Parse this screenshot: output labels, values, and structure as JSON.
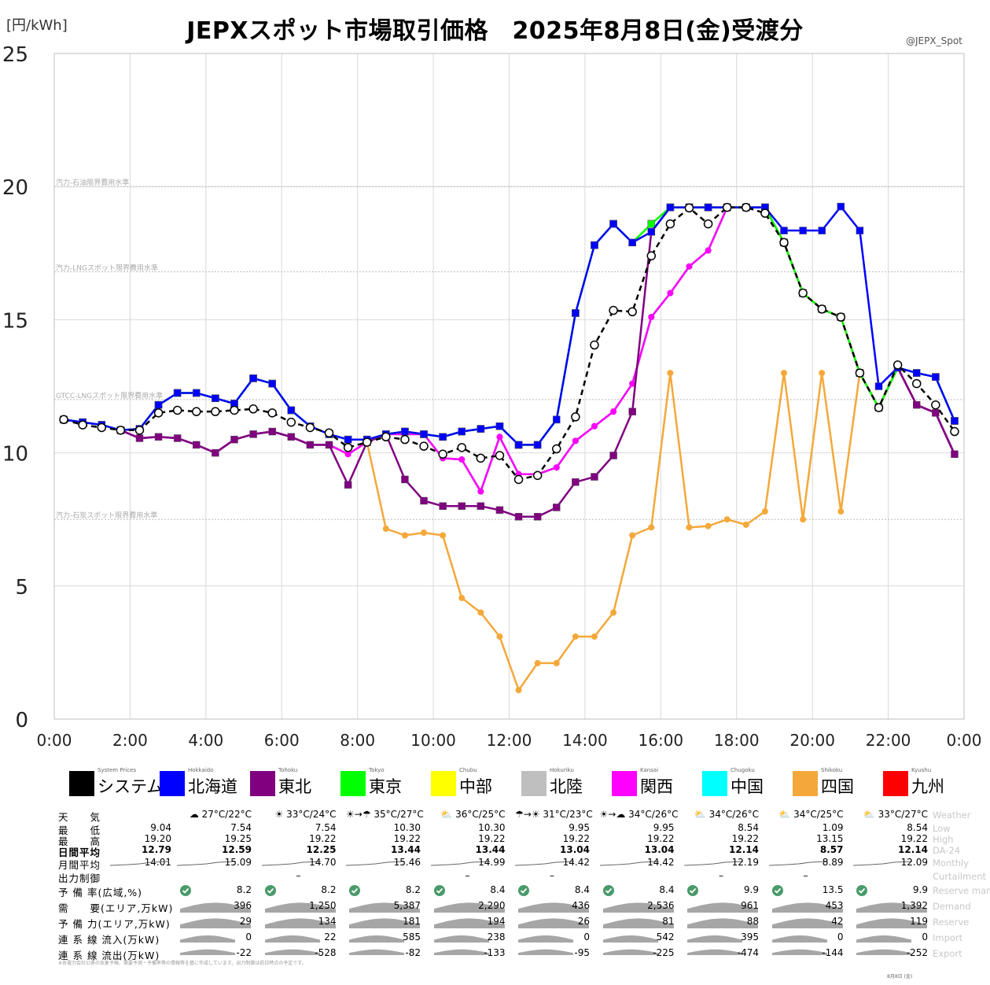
{
  "title": "JEPXスポット市場取引価格　2025年8月8日(金)受渡分",
  "unit_label": "[円/kWh]",
  "handle": "@JEPX_Spot",
  "chart_data": {
    "type": "line",
    "title": "JEPXスポット市場取引価格　2025年8月8日(金)受渡分",
    "ylabel": "[円/kWh]",
    "ylim": [
      0,
      25
    ],
    "xlim": [
      0,
      24
    ],
    "yticks": [
      "0",
      "5",
      "10",
      "15",
      "20",
      "25"
    ],
    "xticks": [
      "0:00",
      "2:00",
      "4:00",
      "6:00",
      "8:00",
      "10:00",
      "12:00",
      "14:00",
      "16:00",
      "18:00",
      "20:00",
      "22:00",
      "0:00"
    ],
    "reference_lines": [
      {
        "label": "汽力-石油限界費用水準",
        "value": 20.0
      },
      {
        "label": "汽力-LNGスポット限界費用水準",
        "value": 16.8
      },
      {
        "label": "GTCC-LNGスポット限界費用水準",
        "value": 12.0
      },
      {
        "label": "汽力-石炭スポット限界費用水準",
        "value": 7.5
      }
    ],
    "series": [
      {
        "name": "システム",
        "color": "#000000",
        "values": [
          11.25,
          11.05,
          10.95,
          10.85,
          10.85,
          11.5,
          11.6,
          11.55,
          11.55,
          11.6,
          11.65,
          11.5,
          11.15,
          10.95,
          10.75,
          10.2,
          10.4,
          10.6,
          10.5,
          10.25,
          9.95,
          10.2,
          9.8,
          9.9,
          9.0,
          9.15,
          10.15,
          11.35,
          14.05,
          15.35,
          15.3,
          17.4,
          18.6,
          19.2,
          18.6,
          19.22,
          19.22,
          19.0,
          17.9,
          16.0,
          15.4,
          15.1,
          13.0,
          11.7,
          13.3,
          12.6,
          11.8,
          10.8
        ]
      },
      {
        "name": "北海道",
        "color": "#0000ff",
        "values": [
          11.25,
          11.15,
          11.05,
          10.85,
          10.9,
          11.8,
          12.25,
          12.25,
          12.05,
          11.85,
          12.8,
          12.6,
          11.6,
          11.0,
          10.7,
          10.5,
          10.5,
          10.7,
          10.8,
          10.7,
          10.6,
          10.8,
          10.9,
          11.0,
          10.3,
          10.3,
          11.25,
          15.25,
          17.8,
          18.6,
          17.9,
          18.3,
          19.22,
          19.22,
          19.22,
          19.22,
          19.22,
          19.22,
          18.35,
          18.35,
          18.35,
          19.25,
          18.35,
          12.5,
          13.2,
          13.0,
          12.85,
          11.2
        ]
      },
      {
        "name": "東北",
        "color": "#800080",
        "values": [
          11.25,
          11.15,
          11.05,
          10.85,
          10.55,
          10.6,
          10.55,
          10.3,
          10.0,
          10.5,
          10.7,
          10.8,
          10.6,
          10.3,
          10.3,
          8.8,
          10.4,
          10.7,
          9.0,
          8.2,
          8.0,
          8.0,
          8.0,
          7.85,
          7.6,
          7.6,
          7.95,
          8.9,
          9.1,
          9.9,
          11.55,
          18.3,
          19.22,
          19.22,
          19.22,
          19.22,
          19.22,
          19.22,
          17.9,
          16.0,
          15.4,
          15.1,
          13.0,
          11.7,
          13.2,
          11.8,
          11.5,
          9.95
        ]
      },
      {
        "name": "東京",
        "color": "#00ff00",
        "values": [
          11.25,
          11.15,
          11.05,
          10.85,
          10.9,
          11.8,
          12.25,
          12.25,
          12.05,
          11.85,
          12.8,
          12.6,
          11.6,
          11.0,
          10.7,
          10.5,
          10.5,
          10.7,
          10.8,
          10.7,
          10.6,
          10.8,
          10.9,
          11.0,
          10.3,
          10.3,
          11.25,
          15.25,
          17.8,
          18.6,
          17.9,
          18.6,
          19.22,
          19.22,
          19.22,
          19.22,
          19.22,
          19.22,
          17.9,
          16.0,
          15.4,
          15.1,
          13.0,
          11.7,
          13.2,
          13.0,
          12.85,
          11.2
        ]
      },
      {
        "name": "中部",
        "color": "#ffff00",
        "values": [
          11.25,
          11.15,
          11.05,
          10.85,
          10.9,
          11.8,
          12.25,
          12.25,
          12.05,
          11.85,
          12.8,
          12.6,
          11.6,
          11.0,
          10.7,
          10.5,
          10.5,
          10.7,
          10.8,
          10.7,
          10.6,
          10.8,
          10.9,
          11.0,
          10.3,
          10.3,
          11.25,
          15.25,
          17.8,
          18.6,
          17.9,
          18.6,
          19.22,
          19.22,
          19.22,
          19.22,
          19.22,
          19.22,
          17.9,
          16.0,
          15.4,
          15.1,
          13.0,
          11.7,
          13.2,
          13.0,
          12.85,
          11.2
        ]
      },
      {
        "name": "北陸",
        "color": "#bfbfbf",
        "values": [
          11.25,
          11.15,
          11.05,
          10.85,
          10.9,
          11.8,
          12.25,
          12.25,
          12.05,
          11.85,
          12.8,
          12.6,
          11.6,
          11.0,
          10.7,
          10.5,
          10.5,
          10.7,
          10.8,
          10.7,
          10.6,
          10.8,
          10.9,
          11.0,
          10.3,
          10.3,
          11.25,
          15.25,
          17.8,
          18.6,
          17.9,
          18.6,
          19.22,
          19.22,
          19.22,
          19.22,
          19.22,
          19.22,
          17.9,
          16.0,
          15.4,
          15.1,
          13.0,
          11.7,
          13.2,
          13.0,
          12.85,
          11.2
        ]
      },
      {
        "name": "関西",
        "color": "#ff00ff",
        "values": [
          11.25,
          11.15,
          11.05,
          10.85,
          10.55,
          10.6,
          10.55,
          10.3,
          10.0,
          10.5,
          10.7,
          10.8,
          10.6,
          10.3,
          10.3,
          9.95,
          10.4,
          10.7,
          10.7,
          10.7,
          9.8,
          9.75,
          8.55,
          10.6,
          9.2,
          9.2,
          9.45,
          10.45,
          11.0,
          11.55,
          12.6,
          15.1,
          16.0,
          17.0,
          17.6,
          19.22,
          19.22,
          19.22,
          17.9,
          16.0,
          15.4,
          15.1,
          13.0,
          11.7,
          13.2,
          11.8,
          11.5,
          9.95
        ]
      },
      {
        "name": "中国",
        "color": "#00ffff",
        "values": [
          11.25,
          11.15,
          11.05,
          10.85,
          10.55,
          10.6,
          10.55,
          10.3,
          10.0,
          10.5,
          10.7,
          10.8,
          10.6,
          10.3,
          10.3,
          9.95,
          10.4,
          10.7,
          10.7,
          10.7,
          9.8,
          9.75,
          8.55,
          10.6,
          9.2,
          9.2,
          9.45,
          10.45,
          11.0,
          11.55,
          12.6,
          15.1,
          16.0,
          17.0,
          17.6,
          19.22,
          19.22,
          19.22,
          17.9,
          16.0,
          15.4,
          15.1,
          13.0,
          11.7,
          13.2,
          11.8,
          11.5,
          9.95
        ]
      },
      {
        "name": "四国",
        "color": "#f4a83a",
        "values": [
          11.25,
          11.15,
          11.05,
          10.85,
          10.55,
          10.6,
          10.55,
          10.3,
          10.0,
          10.5,
          10.7,
          10.8,
          10.6,
          10.3,
          10.3,
          9.95,
          10.4,
          7.15,
          6.9,
          7.0,
          6.9,
          4.55,
          4.0,
          3.1,
          1.09,
          2.1,
          2.1,
          3.1,
          3.1,
          4.0,
          6.9,
          7.2,
          13.0,
          7.2,
          7.25,
          7.5,
          7.3,
          7.8,
          13.0,
          7.5,
          13.0,
          7.8,
          13.0,
          11.7,
          13.2,
          11.8,
          11.5,
          9.95
        ]
      },
      {
        "name": "九州",
        "color": "#ff0000",
        "values": [
          11.25,
          11.15,
          11.05,
          10.85,
          10.55,
          10.6,
          10.55,
          10.3,
          10.0,
          10.5,
          10.7,
          10.8,
          10.6,
          10.3,
          10.3,
          9.95,
          10.4,
          10.7,
          10.7,
          10.7,
          9.8,
          9.75,
          8.55,
          10.6,
          9.2,
          9.2,
          9.45,
          10.45,
          11.0,
          11.55,
          12.6,
          15.1,
          16.0,
          17.0,
          17.6,
          19.22,
          19.22,
          19.22,
          17.9,
          16.0,
          15.4,
          15.1,
          13.0,
          11.7,
          13.2,
          11.8,
          11.5,
          9.95
        ]
      }
    ]
  },
  "legend": [
    {
      "jp": "システム",
      "en": "System Prices",
      "color": "#000000"
    },
    {
      "jp": "北海道",
      "en": "Hokkaido",
      "color": "#0000ff"
    },
    {
      "jp": "東北",
      "en": "Tohoku",
      "color": "#800080"
    },
    {
      "jp": "東京",
      "en": "Tokyo",
      "color": "#00ff00"
    },
    {
      "jp": "中部",
      "en": "Chubu",
      "color": "#ffff00"
    },
    {
      "jp": "北陸",
      "en": "Hokuriku",
      "color": "#bfbfbf"
    },
    {
      "jp": "関西",
      "en": "Kansai",
      "color": "#ff00ff"
    },
    {
      "jp": "中国",
      "en": "Chugoku",
      "color": "#00ffff"
    },
    {
      "jp": "四国",
      "en": "Shikoku",
      "color": "#f4a83a"
    },
    {
      "jp": "九州",
      "en": "Kyushu",
      "color": "#ff0000"
    }
  ],
  "table": {
    "row_labels": [
      {
        "jp": "天　　気",
        "en": "Weather"
      },
      {
        "jp": "最　　低",
        "en": "Low"
      },
      {
        "jp": "最　　高",
        "en": "High"
      },
      {
        "jp": "日間平均",
        "en": "DA-24"
      },
      {
        "jp": "月間平均",
        "en": "Monthly"
      },
      {
        "jp": "出力制御",
        "en": "Curtailment"
      },
      {
        "jp": "予 備 率(広域,%)",
        "en": "Reserve margin"
      },
      {
        "jp": "需　　要(エリア,万kW)",
        "en": "Demand"
      },
      {
        "jp": "予 備 力(エリア,万kW)",
        "en": "Reserve"
      },
      {
        "jp": "連 系 線 流入(万kW)",
        "en": "Import"
      },
      {
        "jp": "連 系 線 流出(万kW)",
        "en": "Export"
      }
    ],
    "system": {
      "low": "9.04",
      "high": "19.20",
      "avg": "12.79",
      "monthly": "14.01"
    },
    "areas": [
      {
        "weather": "☁ 27°C/22°C",
        "low": "7.54",
        "high": "19.25",
        "avg": "12.59",
        "monthly": "15.09",
        "curtail": "",
        "reserve_rate": "8.2",
        "demand": "396",
        "reserve": "29",
        "import": "0",
        "export": "-22"
      },
      {
        "weather": "☀ 33°C/24°C",
        "low": "7.54",
        "high": "19.22",
        "avg": "12.25",
        "monthly": "14.70",
        "curtail": "–",
        "reserve_rate": "8.2",
        "demand": "1,250",
        "reserve": "134",
        "import": "22",
        "export": "-528"
      },
      {
        "weather": "☀→☂ 35°C/27°C",
        "low": "10.30",
        "high": "19.22",
        "avg": "13.44",
        "monthly": "15.46",
        "curtail": "",
        "reserve_rate": "8.2",
        "demand": "5,387",
        "reserve": "181",
        "import": "585",
        "export": "-82"
      },
      {
        "weather": "⛅ 36°C/25°C",
        "low": "10.30",
        "high": "19.22",
        "avg": "13.44",
        "monthly": "14.99",
        "curtail": "–",
        "reserve_rate": "8.4",
        "demand": "2,290",
        "reserve": "194",
        "import": "238",
        "export": "-133"
      },
      {
        "weather": "☂→☀ 31°C/23°C",
        "low": "9.95",
        "high": "19.22",
        "avg": "13.04",
        "monthly": "14.42",
        "curtail": "–",
        "reserve_rate": "8.4",
        "demand": "436",
        "reserve": "26",
        "import": "0",
        "export": "-95"
      },
      {
        "weather": "☀→☁ 34°C/26°C",
        "low": "9.95",
        "high": "19.22",
        "avg": "13.04",
        "monthly": "14.42",
        "curtail": "",
        "reserve_rate": "8.4",
        "demand": "2,536",
        "reserve": "81",
        "import": "542",
        "export": "-225"
      },
      {
        "weather": "⛅ 34°C/26°C",
        "low": "8.54",
        "high": "19.22",
        "avg": "12.14",
        "monthly": "12.19",
        "curtail": "–",
        "reserve_rate": "9.9",
        "demand": "961",
        "reserve": "88",
        "import": "395",
        "export": "-474"
      },
      {
        "weather": "⛅ 34°C/25°C",
        "low": "1.09",
        "high": "13.15",
        "avg": "8.57",
        "monthly": "8.89",
        "curtail": "–",
        "reserve_rate": "13.5",
        "demand": "453",
        "reserve": "42",
        "import": "0",
        "export": "-144"
      },
      {
        "weather": "⛅ 33°C/27°C",
        "low": "8.54",
        "high": "19.22",
        "avg": "12.14",
        "monthly": "12.09",
        "curtail": "",
        "reserve_rate": "9.9",
        "demand": "1,392",
        "reserve": "119",
        "import": "0",
        "export": "-252"
      }
    ]
  },
  "footnote": "※各電力会社公表の気象予報、需要予測・予備率等の情報等を基に作成しています。出力制御は前日時点の予定です。",
  "footnote_date": "8月8日 (金)"
}
